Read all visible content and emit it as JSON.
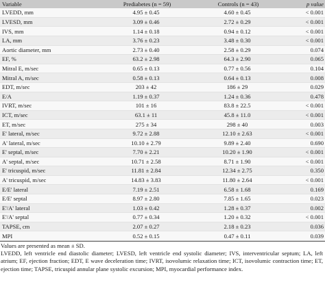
{
  "table": {
    "headers": [
      "Variable",
      "Prediabetes (n = 59)",
      "Controls (n = 43)",
      "p value"
    ],
    "rows": [
      [
        "LVEDD, mm",
        "4.95 ± 0.45",
        "4.60 ± 0.45",
        "< 0.001"
      ],
      [
        "LVESD, mm",
        "3.09 ± 0.46",
        "2.72 ± 0.29",
        "< 0.001"
      ],
      [
        "IVS, mm",
        "1.14 ± 0.18",
        "0.94 ± 0.12",
        "< 0.001"
      ],
      [
        "LA, mm",
        "3.76 ± 0.23",
        "3.48 ± 0.30",
        "< 0.001"
      ],
      [
        "Aortic diameter, mm",
        "2.73 ± 0.40",
        "2.58 ± 0.29",
        "0.074"
      ],
      [
        "EF, %",
        "63.2 ± 2.98",
        "64.3 ± 2.90",
        "0.065"
      ],
      [
        "Mitral E, m/sec",
        "0.65 ± 0.13",
        "0.77 ± 0.56",
        "0.104"
      ],
      [
        "Mitral A, m/sec",
        "0.58 ± 0.13",
        "0.64 ± 0.13",
        "0.008"
      ],
      [
        "EDT, m/sec",
        "203 ± 42",
        "186 ± 29",
        "0.029"
      ],
      [
        "E/A",
        "1.19 ± 0.37",
        "1.24 ± 0.36",
        "0.478"
      ],
      [
        "IVRT, m/sec",
        "101 ± 16",
        "83.8 ± 22.5",
        "< 0.001"
      ],
      [
        "ICT, m/sec",
        "63.1 ± 11",
        "45.8 ± 11.0",
        "< 0.001"
      ],
      [
        "ET, m/sec",
        "275 ± 34",
        "298 ± 40",
        "0.003"
      ],
      [
        "E' lateral, m/sec",
        "9.72 ± 2.88",
        "12.10 ± 2.63",
        "< 0.001"
      ],
      [
        "A' lateral, m/sec",
        "10.10 ± 2.79",
        "9.89 ± 2.40",
        "0.690"
      ],
      [
        "E' septal, m/sec",
        "7.70 ± 2.21",
        "10.20 ± 1.90",
        "< 0.001"
      ],
      [
        "A' septal, m/sec",
        "10.71 ± 2.58",
        "8.71 ± 1.90",
        "< 0.001"
      ],
      [
        "E' tricuspid, m/sec",
        "11.81 ± 2.84",
        "12.34 ± 2.75",
        "0.350"
      ],
      [
        "A' tricuspid, m/sec",
        "14.83 ± 3.83",
        "11.80 ± 2.64",
        "< 0.001"
      ],
      [
        "E/E' lateral",
        "7.19 ± 2.51",
        "6.58 ± 1.68",
        "0.169"
      ],
      [
        "E/E' septal",
        "8.97 ± 2.80",
        "7.85 ± 1.65",
        "0.023"
      ],
      [
        "E'/A' lateral",
        "1.03 ± 0.42",
        "1.28 ± 0.37",
        "0.002"
      ],
      [
        "E'/A' septal",
        "0.77 ± 0.34",
        "1.20 ± 0.32",
        "< 0.001"
      ],
      [
        "TAPSE, cm",
        "2.07 ± 0.27",
        "2.18 ± 0.23",
        "0.036"
      ],
      [
        "MPI",
        "0.52 ± 0.15",
        "0.47 ± 0.11",
        "0.039"
      ]
    ]
  },
  "footnotes": {
    "values_note": "Values are presented as mean ± SD.",
    "abbreviations": "LVEDD, left ventricle end diastolic diameter; LVESD, left ventricle end systolic diameter; IVS, interventricular septum; LA, left atrium; EF, ejection fraction; EDT, E wave deceleration time; IVRT, isovolumic relaxation time; ICT, isovolumic contraction time; ET, ejection time; TAPSE, tricuspid annular plane systolic excursion; MPI, myocardial performance index."
  }
}
